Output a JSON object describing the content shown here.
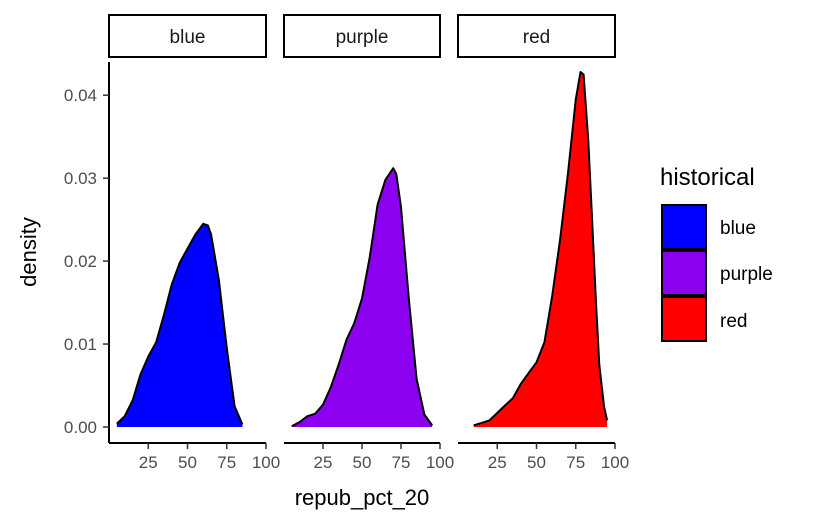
{
  "chart_data": {
    "type": "area",
    "xlabel": "repub_pct_20",
    "ylabel": "density",
    "xlim": [
      0,
      100
    ],
    "ylim": [
      0,
      0.044
    ],
    "x_ticks": [
      25,
      50,
      75,
      100
    ],
    "y_ticks": [
      0.0,
      0.01,
      0.02,
      0.03,
      0.04
    ],
    "y_tick_labels": [
      "0.00",
      "0.01",
      "0.02",
      "0.03",
      "0.04"
    ],
    "legend": {
      "title": "historical",
      "position": "right",
      "entries": [
        {
          "label": "blue",
          "color": "#0000ff"
        },
        {
          "label": "purple",
          "color": "#8b00ee"
        },
        {
          "label": "red",
          "color": "#ff0000"
        }
      ]
    },
    "series": [
      {
        "name": "blue",
        "color": "#0000ff",
        "x": [
          5,
          10,
          15,
          20,
          25,
          30,
          35,
          40,
          45,
          50,
          55,
          60,
          63,
          65,
          70,
          75,
          80,
          85
        ],
        "y": [
          0.0004,
          0.0013,
          0.0032,
          0.0063,
          0.0085,
          0.0102,
          0.0135,
          0.0172,
          0.0198,
          0.0215,
          0.0232,
          0.0245,
          0.0243,
          0.0232,
          0.0177,
          0.0095,
          0.0025,
          0.0003
        ]
      },
      {
        "name": "purple",
        "color": "#8b00ee",
        "x": [
          5,
          10,
          15,
          20,
          25,
          30,
          35,
          40,
          45,
          50,
          55,
          60,
          65,
          70,
          72,
          75,
          80,
          85,
          90,
          95
        ],
        "y": [
          0.0001,
          0.0006,
          0.0013,
          0.0016,
          0.0027,
          0.0048,
          0.0075,
          0.0105,
          0.0125,
          0.0155,
          0.0205,
          0.0268,
          0.0298,
          0.0312,
          0.0305,
          0.0265,
          0.0155,
          0.0058,
          0.0015,
          0.0002
        ]
      },
      {
        "name": "red",
        "color": "#ff0000",
        "x": [
          10,
          15,
          20,
          25,
          30,
          35,
          40,
          45,
          50,
          55,
          60,
          65,
          70,
          75,
          78,
          80,
          83,
          85,
          88,
          90,
          93,
          95
        ],
        "y": [
          0.0002,
          0.0005,
          0.0008,
          0.0017,
          0.0026,
          0.0035,
          0.0052,
          0.0065,
          0.0078,
          0.0102,
          0.0158,
          0.0225,
          0.0305,
          0.0395,
          0.0428,
          0.0425,
          0.0345,
          0.0265,
          0.0145,
          0.0075,
          0.0025,
          0.0008
        ]
      }
    ]
  }
}
